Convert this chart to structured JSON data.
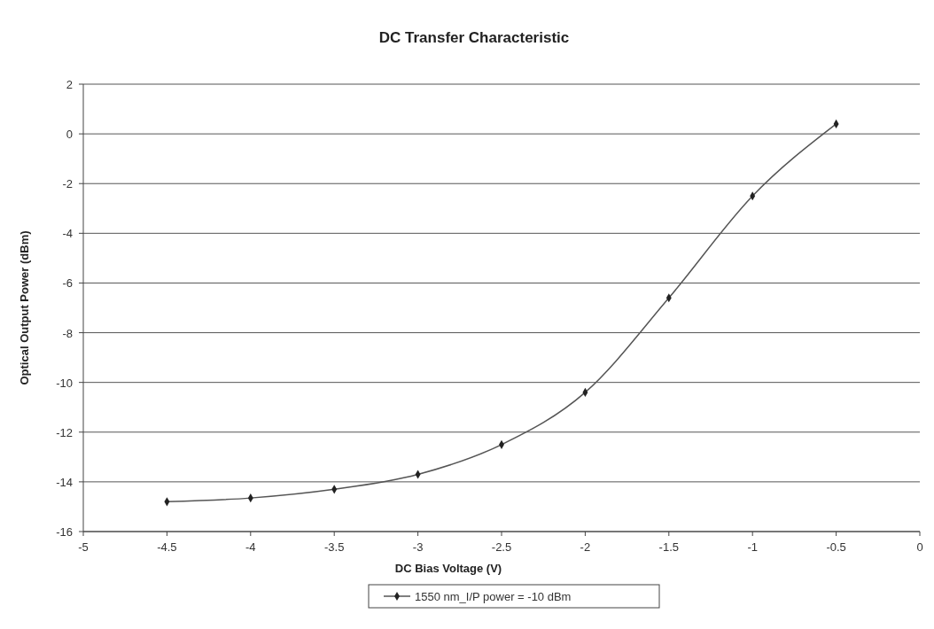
{
  "chart_data": {
    "type": "line",
    "title": "DC Transfer Characteristic",
    "xlabel": "DC Bias Voltage (V)",
    "ylabel": "Optical Output Power (dBm)",
    "x": [
      -4.5,
      -4,
      -3.5,
      -3,
      -2.5,
      -2,
      -1.5,
      -1,
      -0.5
    ],
    "series": [
      {
        "name": "1550 nm_I/P power = -10 dBm",
        "color": "#555555",
        "values": [
          -14.8,
          -14.65,
          -14.3,
          -13.7,
          -12.5,
          -10.4,
          -6.6,
          -2.5,
          0.4
        ]
      }
    ],
    "xlim": [
      -5,
      0
    ],
    "xticks": [
      -5,
      -4.5,
      -4,
      -3.5,
      -3,
      -2.5,
      -2,
      -1.5,
      -1,
      -0.5,
      0
    ],
    "ylim": [
      -16,
      2
    ],
    "yticks": [
      -16,
      -14,
      -12,
      -10,
      -8,
      -6,
      -4,
      -2,
      0,
      2
    ],
    "grid": "y",
    "legend": "bottom",
    "marker": "diamond",
    "line_style": "solid"
  }
}
